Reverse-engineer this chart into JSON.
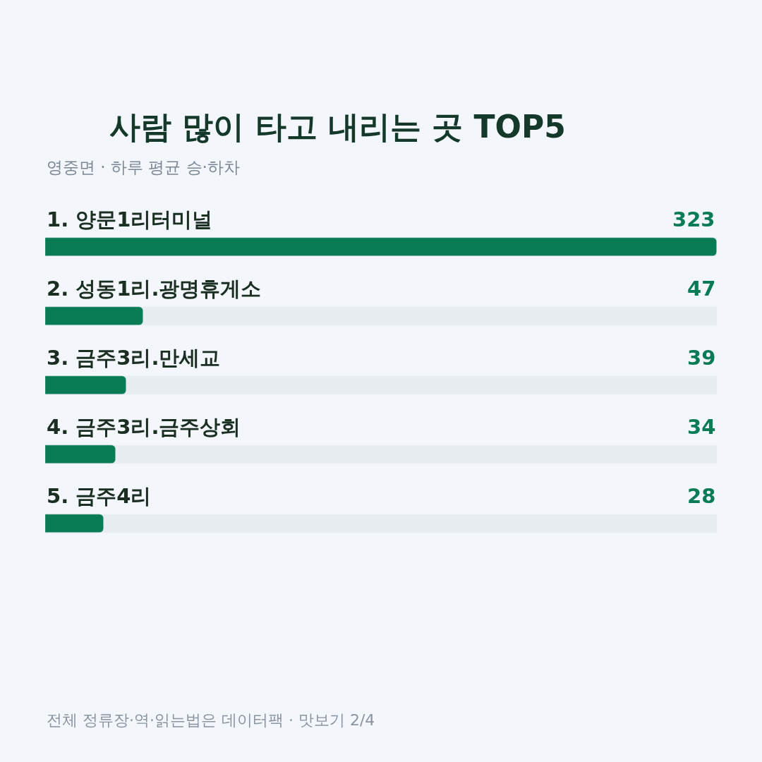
{
  "chart_data": {
    "type": "bar",
    "orientation": "horizontal",
    "title": "사람 많이 타고 내리는 곳 TOP5",
    "subtitle": "영중면 · 하루 평균 승·하차",
    "categories": [
      "1. 양문1리터미널",
      "2. 성동1리.광명휴게소",
      "3. 금주3리.만세교",
      "4. 금주3리.금주상회",
      "5. 금주4리"
    ],
    "values": [
      323,
      47,
      39,
      34,
      28
    ],
    "color": "#0a7c55",
    "xlim": [
      0,
      323
    ],
    "data_labels": true,
    "tick_labels": false,
    "grid": false,
    "annotations": [
      "전체 정류장·역·읽는법은 데이터팩 · 맛보기 2/4"
    ]
  }
}
